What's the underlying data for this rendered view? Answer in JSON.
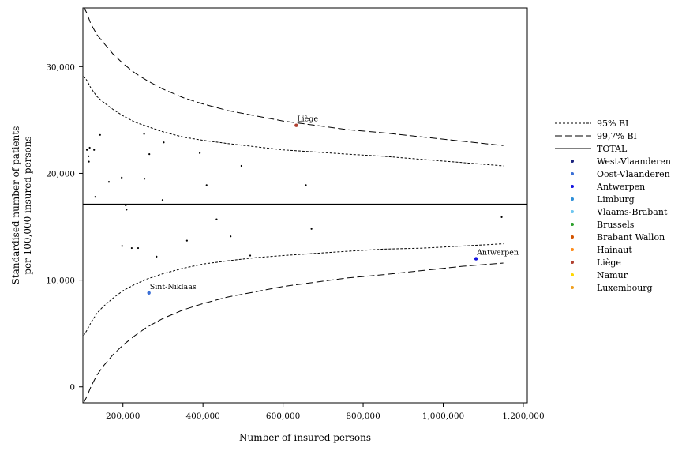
{
  "chart_data": {
    "type": "scatter",
    "xlabel": "Number of insured persons",
    "ylabel_lines": [
      "Standardised number of patients",
      "per 100,000 insured persons"
    ],
    "xlim": [
      100000,
      1210000
    ],
    "ylim": [
      -1500,
      35500
    ],
    "x_ticks": [
      {
        "value": 200000,
        "label": "200,000"
      },
      {
        "value": 400000,
        "label": "400,000"
      },
      {
        "value": 600000,
        "label": "600,000"
      },
      {
        "value": 800000,
        "label": "800,000"
      },
      {
        "value": 1000000,
        "label": "1,000,000"
      },
      {
        "value": 1200000,
        "label": "1,200,000"
      }
    ],
    "y_ticks": [
      {
        "value": 0,
        "label": "0"
      },
      {
        "value": 10000,
        "label": "10,000"
      },
      {
        "value": 20000,
        "label": "20,000"
      },
      {
        "value": 30000,
        "label": "30,000"
      }
    ],
    "total": 17100,
    "limits": {
      "x": [
        102000,
        110000,
        120000,
        135000,
        150000,
        175000,
        200000,
        230000,
        260000,
        300000,
        350000,
        400000,
        460000,
        530000,
        600000,
        680000,
        760000,
        850000,
        950000,
        1050000,
        1150000
      ],
      "upper_999": [
        35600,
        35000,
        34000,
        33000,
        32300,
        31200,
        30300,
        29400,
        28700,
        27900,
        27100,
        26500,
        25900,
        25400,
        24900,
        24500,
        24100,
        23800,
        23400,
        23000,
        22600
      ],
      "upper_95": [
        29100,
        28700,
        28000,
        27200,
        26700,
        26000,
        25400,
        24800,
        24400,
        23900,
        23400,
        23100,
        22800,
        22500,
        22200,
        22000,
        21800,
        21600,
        21300,
        21000,
        20700
      ],
      "lower_95": [
        4800,
        5300,
        6000,
        6900,
        7500,
        8300,
        9000,
        9600,
        10100,
        10600,
        11100,
        11500,
        11800,
        12100,
        12300,
        12500,
        12700,
        12900,
        13000,
        13200,
        13400
      ],
      "lower_999": [
        -1500,
        -900,
        0,
        1100,
        1900,
        3000,
        3900,
        4800,
        5600,
        6400,
        7200,
        7800,
        8400,
        8900,
        9400,
        9800,
        10200,
        10500,
        10900,
        11300,
        11600
      ]
    },
    "points": [
      {
        "x": 110000,
        "y": 22200,
        "color": "#000000"
      },
      {
        "x": 114000,
        "y": 21600,
        "color": "#000000"
      },
      {
        "x": 115000,
        "y": 21100,
        "color": "#000000"
      },
      {
        "x": 117000,
        "y": 22400,
        "color": "#000000"
      },
      {
        "x": 128000,
        "y": 22200,
        "color": "#000000"
      },
      {
        "x": 131000,
        "y": 17800,
        "color": "#000000"
      },
      {
        "x": 143000,
        "y": 23600,
        "color": "#000000"
      },
      {
        "x": 165000,
        "y": 19200,
        "color": "#000000"
      },
      {
        "x": 197000,
        "y": 19600,
        "color": "#000000"
      },
      {
        "x": 198000,
        "y": 13200,
        "color": "#000000"
      },
      {
        "x": 207000,
        "y": 17000,
        "color": "#000000"
      },
      {
        "x": 209000,
        "y": 16600,
        "color": "#000000"
      },
      {
        "x": 222000,
        "y": 13000,
        "color": "#000000"
      },
      {
        "x": 238000,
        "y": 13000,
        "color": "#000000"
      },
      {
        "x": 253000,
        "y": 23700,
        "color": "#000000"
      },
      {
        "x": 254000,
        "y": 19500,
        "color": "#000000"
      },
      {
        "x": 266000,
        "y": 21800,
        "color": "#000000"
      },
      {
        "x": 284000,
        "y": 12200,
        "color": "#000000"
      },
      {
        "x": 299000,
        "y": 17500,
        "color": "#000000"
      },
      {
        "x": 302000,
        "y": 22900,
        "color": "#000000"
      },
      {
        "x": 360000,
        "y": 13700,
        "color": "#000000"
      },
      {
        "x": 392000,
        "y": 21900,
        "color": "#000000"
      },
      {
        "x": 409000,
        "y": 18900,
        "color": "#000000"
      },
      {
        "x": 434000,
        "y": 15700,
        "color": "#000000"
      },
      {
        "x": 469000,
        "y": 14100,
        "color": "#000000"
      },
      {
        "x": 496000,
        "y": 20700,
        "color": "#000000"
      },
      {
        "x": 518000,
        "y": 12300,
        "color": "#000000"
      },
      {
        "x": 657000,
        "y": 18900,
        "color": "#000000"
      },
      {
        "x": 671000,
        "y": 14800,
        "color": "#000000"
      },
      {
        "x": 1146000,
        "y": 15900,
        "color": "#000000"
      },
      {
        "x": 265000,
        "y": 8800,
        "color": "#3b6fd6",
        "label": "Sint-Niklaas"
      },
      {
        "x": 633000,
        "y": 24500,
        "color": "#b04030",
        "label": "Liège"
      },
      {
        "x": 1082000,
        "y": 12000,
        "color": "#1414e0",
        "label": "Antwerpen"
      }
    ]
  },
  "legend": {
    "lines": [
      {
        "label": "95% BI",
        "dash": "3,2"
      },
      {
        "label": "99,7% BI",
        "dash": "9,4"
      },
      {
        "label": "TOTAL",
        "dash": ""
      }
    ],
    "markers": [
      {
        "label": "West-Vlaanderen",
        "color": "#1a237e"
      },
      {
        "label": "Oost-Vlaanderen",
        "color": "#3b6fd6"
      },
      {
        "label": "Antwerpen",
        "color": "#1414e0"
      },
      {
        "label": "Limburg",
        "color": "#2e8fd8"
      },
      {
        "label": "Vlaams-Brabant",
        "color": "#6ec6f0"
      },
      {
        "label": "Brussels",
        "color": "#2ca02c"
      },
      {
        "label": "Brabant Wallon",
        "color": "#d35400"
      },
      {
        "label": "Hainaut",
        "color": "#ff8c1a"
      },
      {
        "label": "Liège",
        "color": "#b04030"
      },
      {
        "label": "Namur",
        "color": "#ffd700"
      },
      {
        "label": "Luxembourg",
        "color": "#f0a020"
      }
    ]
  }
}
